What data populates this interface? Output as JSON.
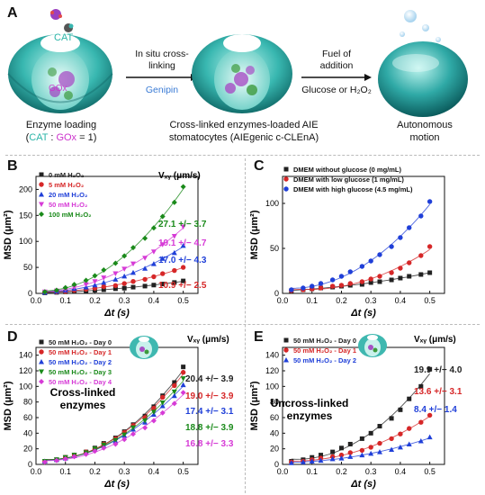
{
  "panel_a": {
    "label": "A",
    "cat_label": "CAT",
    "gox_label": "GOx",
    "step1_line1": "In situ cross-",
    "step1_line2": "linking",
    "step1_reagent": "Genipin",
    "step2_line1": "Fuel of",
    "step2_line2": "addition",
    "step2_reagent": "Glucose or H₂O₂",
    "cap1_line1": "Enzyme loading",
    "cap1_open": "(",
    "cap1_cat": "CAT",
    "cap1_sep": " : ",
    "cap1_gox": "GOx",
    "cap1_close": " = 1)",
    "cap2_line1": "Cross-linked enzymes-loaded AIE",
    "cap2_line2": "stomatocytes (AIEgenic c-CLEnA)",
    "cap3_line1": "Autonomous",
    "cap3_line2": "motion"
  },
  "colors": {
    "black": "#222222",
    "red": "#d62728",
    "blue": "#1f3fd8",
    "magenta": "#d63ad6",
    "green": "#1a8a1a",
    "teal": "#37b6b0",
    "cat_teal": "#2bb5a8",
    "genipin_blue": "#3a7bd5"
  },
  "icons": [
    "stomatocyte-icon",
    "enzyme-icon",
    "arrow-right-icon"
  ],
  "chart_data": [
    {
      "panel": "B",
      "type": "scatter",
      "xlabel": "Δt (s)",
      "ylabel": "MSD (μm²)",
      "xlim": [
        0,
        0.55
      ],
      "ylim": [
        0,
        225
      ],
      "xticks": [
        0.0,
        0.1,
        0.2,
        0.3,
        0.4,
        0.5
      ],
      "yticks": [
        0,
        50,
        100,
        150,
        200
      ],
      "legend": "top-left",
      "vxy_title": "Vₓᵧ (μm/s)",
      "x": [
        0.03,
        0.07,
        0.1,
        0.13,
        0.17,
        0.2,
        0.23,
        0.27,
        0.3,
        0.33,
        0.37,
        0.4,
        0.43,
        0.47,
        0.5
      ],
      "series": [
        {
          "name": "0 mM H₂O₂",
          "marker": "square",
          "color": "#222222",
          "values": [
            1,
            2,
            3,
            4,
            5,
            6,
            7,
            9,
            10,
            12,
            14,
            16,
            18,
            21,
            24
          ]
        },
        {
          "name": "5 mM H₂O₂",
          "marker": "circle",
          "color": "#d62728",
          "values": [
            2,
            3,
            4,
            6,
            8,
            10,
            13,
            15,
            19,
            23,
            27,
            32,
            38,
            44,
            50
          ],
          "vxy": "10.9 +/− 2.5"
        },
        {
          "name": "20 mM H₂O₂",
          "marker": "triangle",
          "color": "#1f3fd8",
          "values": [
            2,
            4,
            6,
            9,
            12,
            16,
            21,
            27,
            33,
            40,
            48,
            57,
            67,
            78,
            92
          ],
          "vxy": "17.0 +/− 4.3"
        },
        {
          "name": "50 mM H₂O₂",
          "marker": "tri-down",
          "color": "#d63ad6",
          "values": [
            3,
            5,
            8,
            12,
            17,
            23,
            30,
            38,
            47,
            57,
            68,
            80,
            94,
            110,
            128
          ],
          "vxy": "19.1 +/− 4.7"
        },
        {
          "name": "100 mM H₂O₂",
          "marker": "diamond",
          "color": "#1a8a1a",
          "values": [
            3,
            6,
            11,
            17,
            25,
            34,
            45,
            58,
            72,
            88,
            106,
            126,
            148,
            175,
            205
          ],
          "vxy": "27.1 +/− 3.7"
        }
      ]
    },
    {
      "panel": "C",
      "type": "scatter",
      "xlabel": "Δt (s)",
      "ylabel": "MSD (μm²)",
      "xlim": [
        0,
        0.55
      ],
      "ylim": [
        0,
        130
      ],
      "xticks": [
        0.0,
        0.1,
        0.2,
        0.3,
        0.4,
        0.5
      ],
      "yticks": [
        0,
        50,
        100
      ],
      "legend": "top-left",
      "x": [
        0.03,
        0.07,
        0.1,
        0.13,
        0.17,
        0.2,
        0.23,
        0.27,
        0.3,
        0.33,
        0.37,
        0.4,
        0.43,
        0.47,
        0.5
      ],
      "series": [
        {
          "name": "DMEM without glucose (0 mg/mL)",
          "marker": "square",
          "color": "#222222",
          "values": [
            3,
            4,
            5,
            6,
            7,
            8,
            9,
            10,
            12,
            13,
            15,
            17,
            19,
            21,
            23
          ]
        },
        {
          "name": "DMEM with low glucose (1 mg/mL)",
          "marker": "circle",
          "color": "#d62728",
          "values": [
            3,
            4,
            5,
            6,
            8,
            9,
            11,
            13,
            16,
            19,
            23,
            28,
            34,
            42,
            52
          ]
        },
        {
          "name": "DMEM with high glucose (4.5 mg/mL)",
          "marker": "circle",
          "color": "#1f3fd8",
          "values": [
            4,
            6,
            8,
            11,
            15,
            19,
            24,
            30,
            36,
            43,
            52,
            62,
            73,
            86,
            102
          ]
        }
      ]
    },
    {
      "panel": "D",
      "type": "scatter",
      "xlabel": "Δt (s)",
      "ylabel": "MSD (μm²)",
      "xlim": [
        0,
        0.55
      ],
      "ylim": [
        0,
        150
      ],
      "xticks": [
        0.0,
        0.1,
        0.2,
        0.3,
        0.4,
        0.5
      ],
      "yticks": [
        0,
        20,
        40,
        60,
        80,
        100,
        120,
        140
      ],
      "legend": "top-left",
      "annotation": "Cross-linked enzymes",
      "vxy_title": "Vₓᵧ (μm/s)",
      "x": [
        0.03,
        0.07,
        0.1,
        0.13,
        0.17,
        0.2,
        0.23,
        0.27,
        0.3,
        0.33,
        0.37,
        0.4,
        0.43,
        0.47,
        0.5
      ],
      "series": [
        {
          "name": "50 mM H₂O₂ - Day 0",
          "marker": "square",
          "color": "#222222",
          "values": [
            4,
            6,
            9,
            12,
            16,
            21,
            27,
            34,
            42,
            51,
            62,
            74,
            88,
            105,
            125
          ],
          "vxy": "20.4 +/− 3.9"
        },
        {
          "name": "50 mM H₂O₂ - Day 1",
          "marker": "circle",
          "color": "#d62728",
          "values": [
            4,
            6,
            9,
            12,
            16,
            20,
            26,
            33,
            41,
            50,
            60,
            72,
            86,
            101,
            118
          ],
          "vxy": "19.0 +/− 3.9"
        },
        {
          "name": "50 mM H₂O₂ - Day 2",
          "marker": "triangle",
          "color": "#1f3fd8",
          "values": [
            4,
            6,
            8,
            11,
            15,
            19,
            24,
            30,
            37,
            45,
            54,
            64,
            75,
            88,
            102
          ],
          "vxy": "17.4 +/− 3.1"
        },
        {
          "name": "50 mM H₂O₂ - Day 3",
          "marker": "tri-down",
          "color": "#1a8a1a",
          "values": [
            4,
            6,
            9,
            12,
            15,
            20,
            25,
            31,
            38,
            47,
            56,
            67,
            79,
            93,
            110
          ],
          "vxy": "18.8 +/− 3.9"
        },
        {
          "name": "50 mM H₂O₂ - Day 4",
          "marker": "diamond",
          "color": "#d63ad6",
          "values": [
            3,
            5,
            7,
            10,
            13,
            17,
            21,
            26,
            32,
            39,
            47,
            56,
            66,
            78,
            92
          ],
          "vxy": "16.8 +/− 3.3"
        }
      ]
    },
    {
      "panel": "E",
      "type": "scatter",
      "xlabel": "Δt (s)",
      "ylabel": "MSD (μm²)",
      "xlim": [
        0,
        0.55
      ],
      "ylim": [
        0,
        150
      ],
      "xticks": [
        0.0,
        0.1,
        0.2,
        0.3,
        0.4,
        0.5
      ],
      "yticks": [
        0,
        20,
        40,
        60,
        80,
        100,
        120,
        140
      ],
      "legend": "top-left",
      "annotation": "Uncross-linked enzymes",
      "vxy_title": "Vₓᵧ (μm/s)",
      "x": [
        0.03,
        0.07,
        0.1,
        0.13,
        0.17,
        0.2,
        0.23,
        0.27,
        0.3,
        0.33,
        0.37,
        0.4,
        0.43,
        0.47,
        0.5
      ],
      "series": [
        {
          "name": "50 mM H₂O₂ - Day 0",
          "marker": "square",
          "color": "#222222",
          "values": [
            4,
            6,
            9,
            12,
            16,
            21,
            26,
            33,
            40,
            49,
            59,
            70,
            84,
            100,
            122
          ],
          "vxy": "19.9 +/− 4.0"
        },
        {
          "name": "50 mM H₂O₂ - Day 1",
          "marker": "circle",
          "color": "#d62728",
          "values": [
            3,
            4,
            6,
            8,
            10,
            12,
            15,
            18,
            22,
            27,
            33,
            39,
            46,
            54,
            63
          ],
          "vxy": "13.6 +/− 3.1"
        },
        {
          "name": "50 mM H₂O₂ - Day 2",
          "marker": "triangle",
          "color": "#1f3fd8",
          "values": [
            2,
            3,
            4,
            5,
            7,
            8,
            10,
            12,
            14,
            16,
            19,
            22,
            26,
            30,
            35
          ],
          "vxy": "8.4 +/− 1.4"
        }
      ]
    }
  ]
}
